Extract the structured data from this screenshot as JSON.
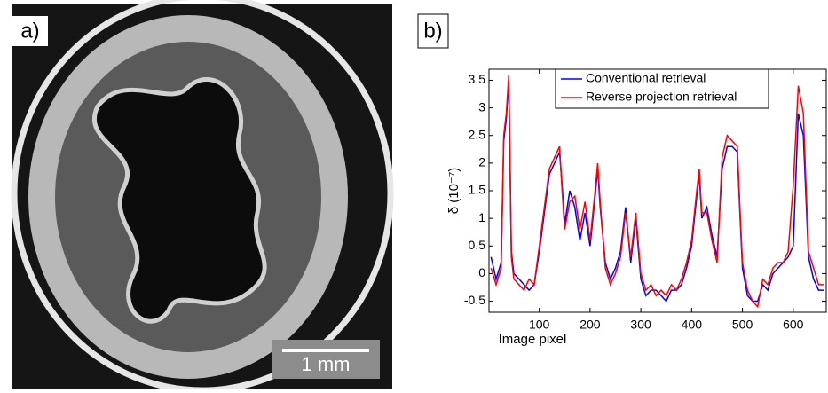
{
  "panel_a": {
    "label": "a)",
    "scale_bar": "1 mm"
  },
  "chart_data": {
    "type": "line",
    "panel_label": "b)",
    "x_label": "Image pixel",
    "y_label": "δ (10⁻⁷)",
    "x": [
      5,
      15,
      25,
      30,
      35,
      40,
      45,
      50,
      60,
      70,
      80,
      90,
      100,
      110,
      120,
      130,
      140,
      145,
      150,
      160,
      170,
      180,
      190,
      200,
      210,
      215,
      220,
      230,
      240,
      250,
      260,
      270,
      280,
      290,
      300,
      310,
      320,
      330,
      340,
      350,
      360,
      370,
      380,
      390,
      400,
      410,
      415,
      420,
      430,
      440,
      450,
      460,
      470,
      480,
      490,
      495,
      500,
      510,
      520,
      530,
      540,
      550,
      560,
      570,
      580,
      590,
      600,
      610,
      620,
      630,
      640,
      650,
      660
    ],
    "series": [
      {
        "name": "Conventional retrieval",
        "color": "#0000ff",
        "values": [
          0.3,
          -0.1,
          0.2,
          2.4,
          2.8,
          3.5,
          0.4,
          0,
          -0.1,
          -0.2,
          -0.3,
          -0.2,
          0.4,
          1.1,
          1.8,
          2.0,
          2.2,
          1.6,
          0.9,
          1.5,
          1.2,
          0.6,
          1.1,
          0.5,
          1.4,
          1.9,
          1.2,
          0.2,
          -0.1,
          0.1,
          0.4,
          1.2,
          0.2,
          1.0,
          -0.1,
          -0.4,
          -0.3,
          -0.3,
          -0.4,
          -0.5,
          -0.3,
          -0.3,
          -0.2,
          0.1,
          0.5,
          1.4,
          1.8,
          1.0,
          1.2,
          0.7,
          0.3,
          1.9,
          2.3,
          2.3,
          2.2,
          1.1,
          0.1,
          -0.4,
          -0.5,
          -0.5,
          -0.2,
          -0.3,
          0,
          0.1,
          0.2,
          0.3,
          0.5,
          2.9,
          2.5,
          0.3,
          -0.1,
          -0.3,
          -0.3
        ]
      },
      {
        "name": "Reverse projection retrieval",
        "color": "#ff0000",
        "values": [
          0.1,
          -0.2,
          0.1,
          2.5,
          2.9,
          3.6,
          0.3,
          -0.1,
          -0.2,
          -0.3,
          -0.1,
          -0.2,
          0.5,
          1.2,
          1.9,
          2.1,
          2.3,
          1.5,
          0.8,
          1.3,
          1.4,
          0.8,
          1.3,
          0.6,
          1.5,
          2.0,
          1.3,
          0.1,
          -0.2,
          0,
          0.3,
          1.1,
          0.3,
          1.1,
          0,
          -0.3,
          -0.2,
          -0.4,
          -0.3,
          -0.4,
          -0.2,
          -0.3,
          -0.1,
          0.2,
          0.6,
          1.5,
          1.9,
          1.1,
          1.1,
          0.6,
          0.2,
          2.1,
          2.5,
          2.4,
          2.3,
          1.2,
          0.2,
          -0.3,
          -0.5,
          -0.6,
          -0.1,
          -0.2,
          0.1,
          0.2,
          0.2,
          0.4,
          1.6,
          3.4,
          2.9,
          0.4,
          0.1,
          -0.2,
          -0.2
        ]
      }
    ],
    "xlim": [
      1,
      665
    ],
    "ylim": [
      -0.7,
      3.7
    ],
    "xticks": [
      100,
      200,
      300,
      400,
      500,
      600
    ],
    "yticks": [
      -0.5,
      0,
      0.5,
      1,
      1.5,
      2,
      2.5,
      3,
      3.5
    ],
    "legend": "top"
  }
}
